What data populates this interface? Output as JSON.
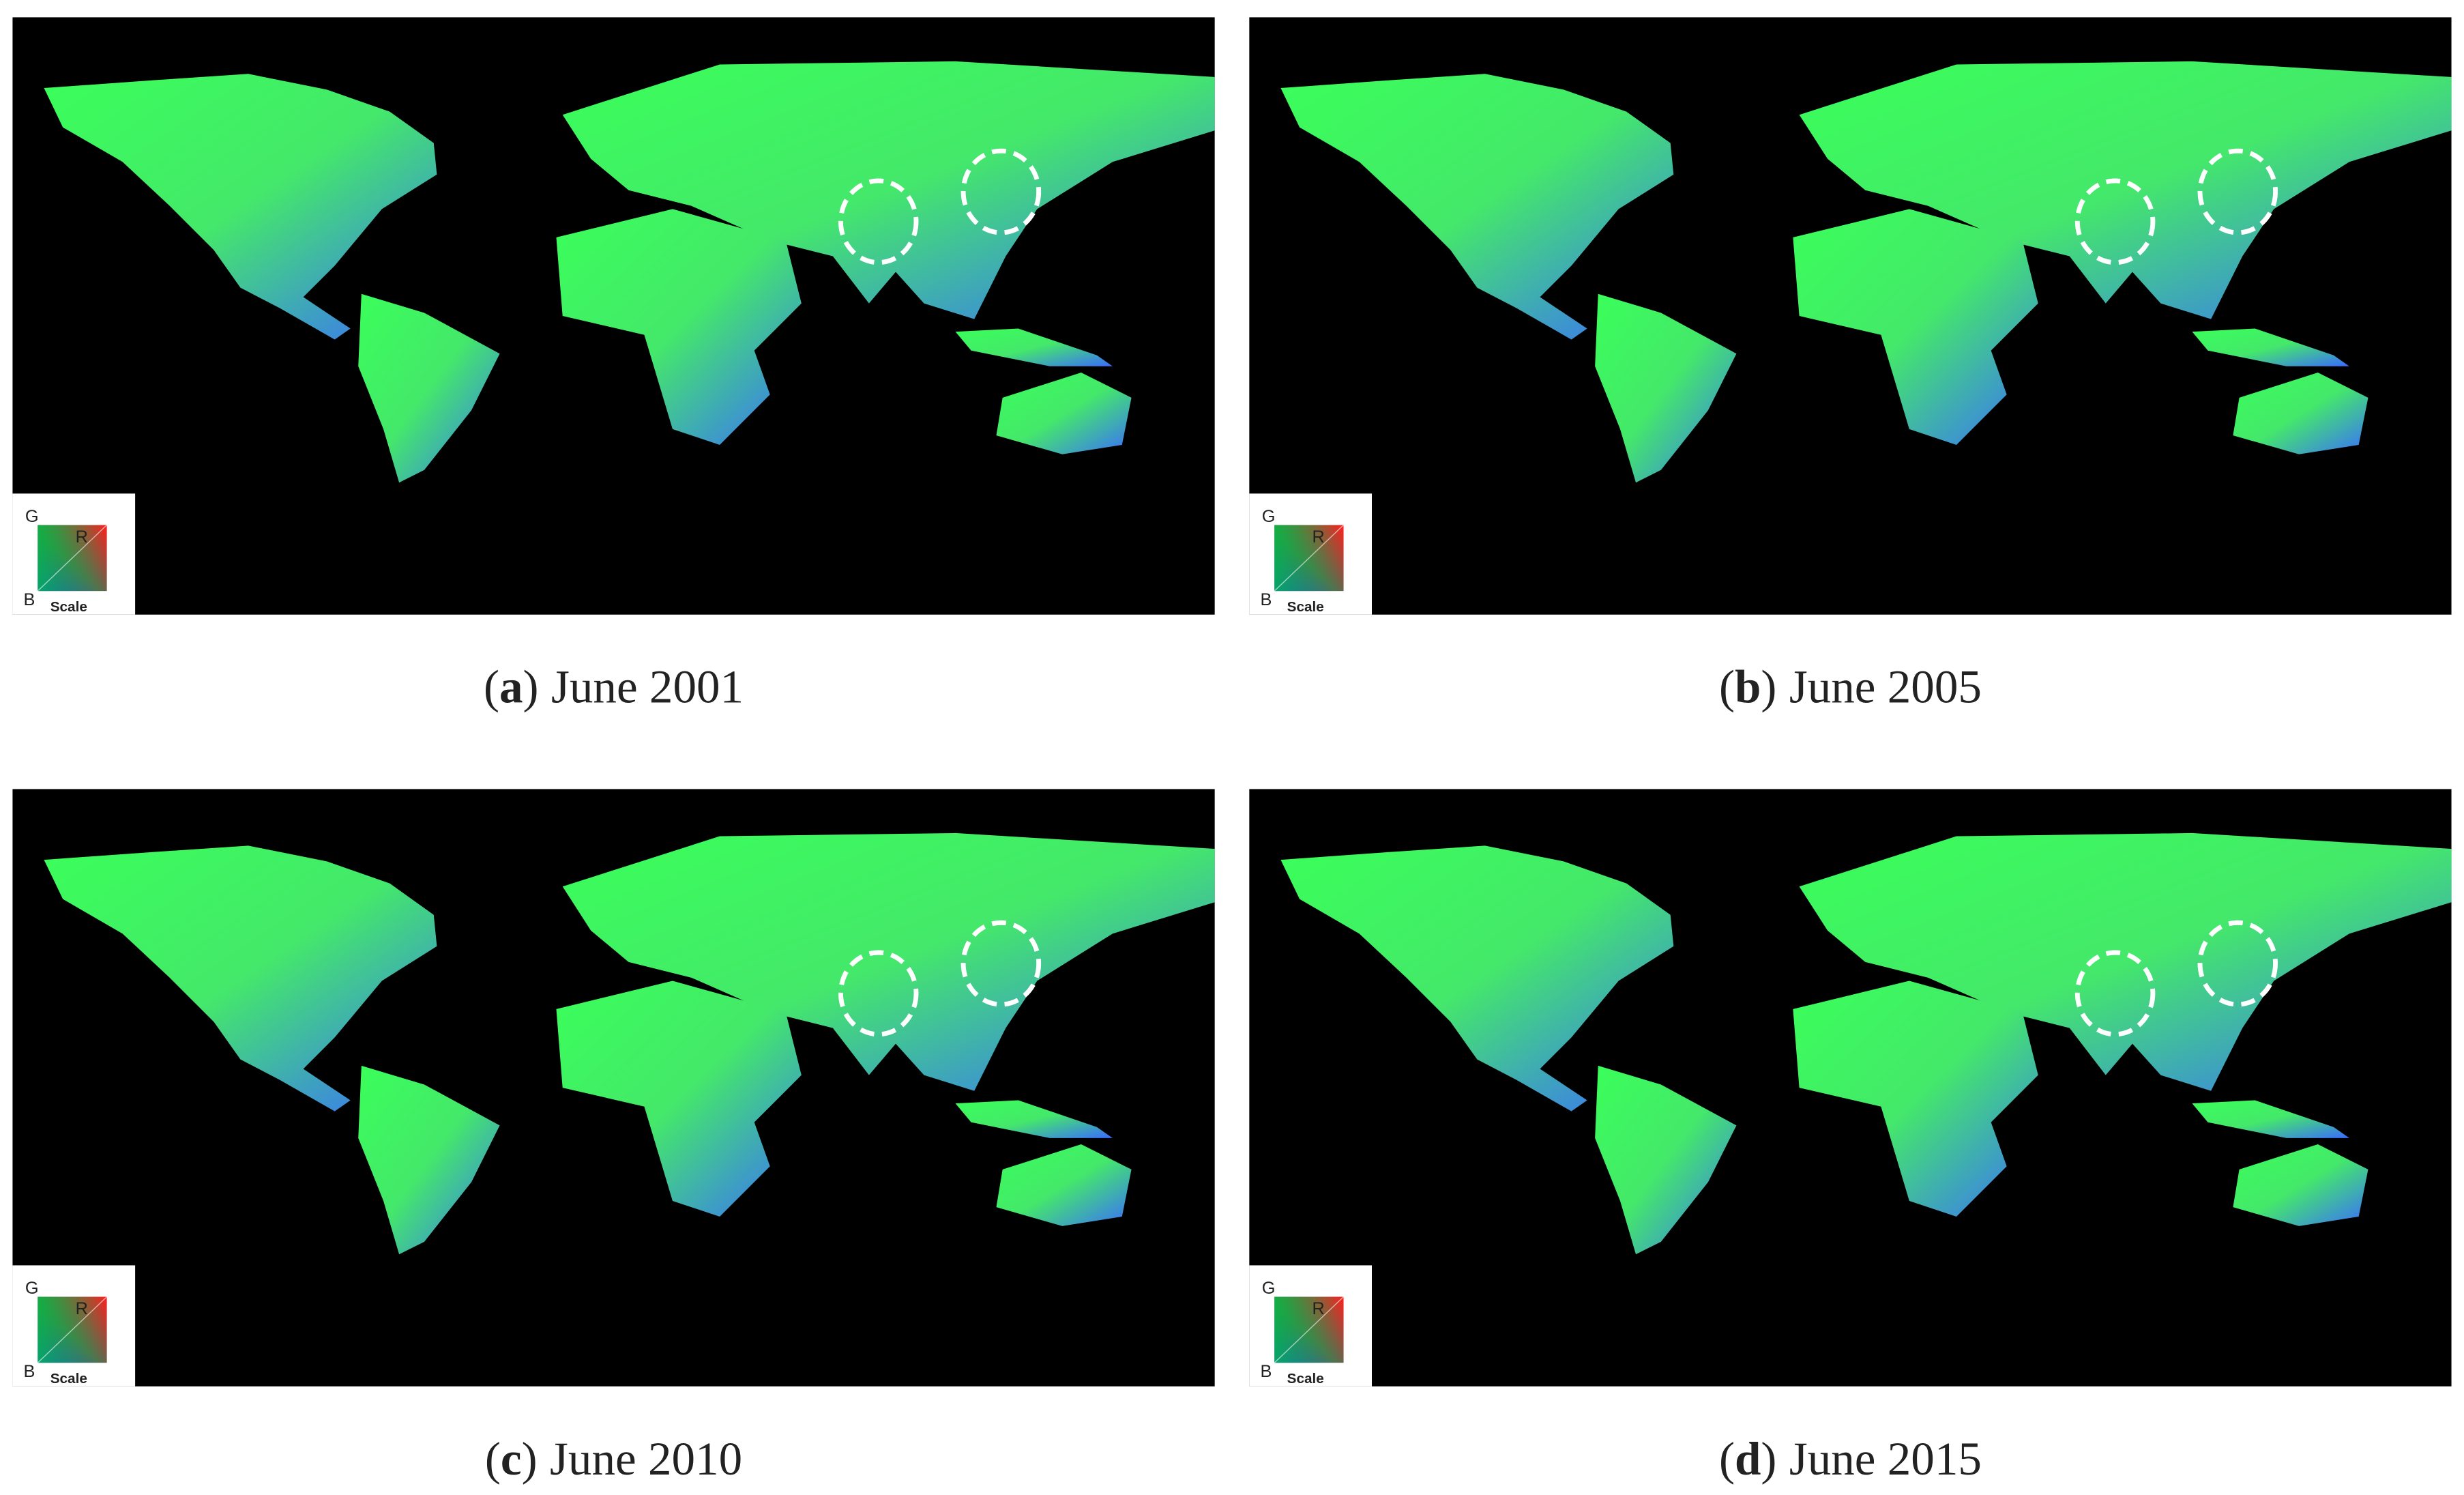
{
  "legend": {
    "g": "G",
    "r": "R",
    "b": "B",
    "title": "Scale"
  },
  "panels": [
    {
      "open": "(",
      "letter": "a",
      "close": ")",
      "caption": "June 2001"
    },
    {
      "open": "(",
      "letter": "b",
      "close": ")",
      "caption": "June 2005"
    },
    {
      "open": "(",
      "letter": "c",
      "close": ")",
      "caption": "June 2010"
    },
    {
      "open": "(",
      "letter": "d",
      "close": ")",
      "caption": "June 2015"
    }
  ]
}
